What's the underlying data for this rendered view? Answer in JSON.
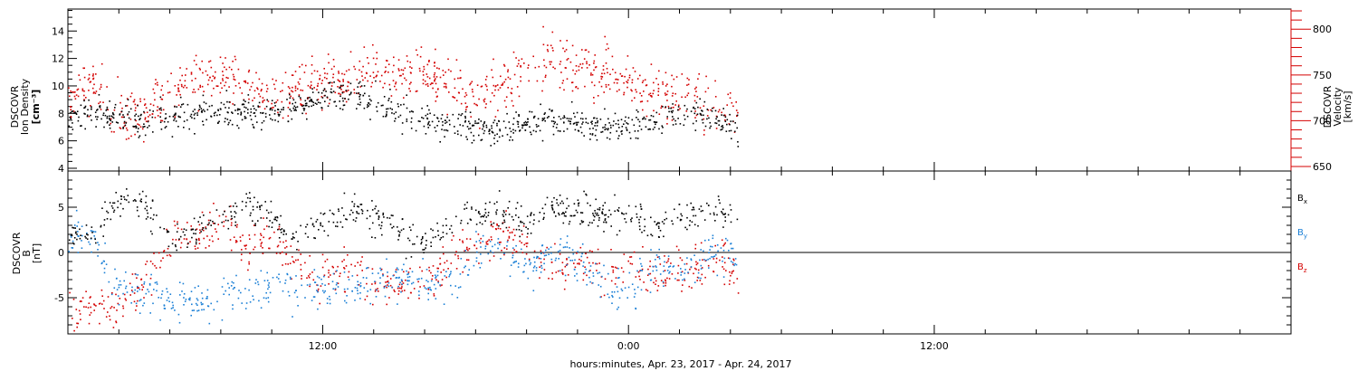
{
  "chart_data": [
    {
      "type": "scatter",
      "title": "",
      "x_axis": {
        "label": "hours:minutes, Apr. 23, 2017 - Apr. 24, 2017",
        "range_hours": [
          0,
          48
        ],
        "major_ticks": [
          {
            "hour": 10,
            "label": "12:00"
          },
          {
            "hour": 22,
            "label": "0:00"
          },
          {
            "hour": 34,
            "label": "12:00"
          }
        ],
        "minor_tick_every_hours": 2
      },
      "left_axis": {
        "label_lines": [
          "DSCOVR",
          "Ion Density"
        ],
        "unit": "[cm⁻³]",
        "range": [
          3.8,
          15.6
        ],
        "ticks": [
          4,
          6,
          8,
          10,
          12,
          14
        ],
        "color": "#000000"
      },
      "right_axis": {
        "label_lines": [
          "DSCOVR",
          "Velocity"
        ],
        "unit": "[km/s]",
        "range": [
          645,
          822
        ],
        "ticks": [
          650,
          700,
          750,
          800
        ],
        "color": "#d40000"
      },
      "series": [
        {
          "name": "Ion Density",
          "axis": "left",
          "color": "#000000",
          "anchors_x_hours": [
            0,
            1,
            2,
            3,
            4,
            5,
            6,
            7,
            8,
            9,
            10,
            11,
            12,
            13,
            14,
            15,
            16,
            17,
            18,
            19,
            20,
            21,
            22,
            23,
            24,
            25,
            26,
            26.3
          ],
          "anchors_y": [
            8.0,
            8.1,
            7.6,
            7.5,
            7.7,
            7.9,
            8.1,
            8.2,
            8.3,
            8.3,
            9.2,
            9.6,
            8.8,
            8.0,
            7.6,
            7.2,
            7.0,
            7.0,
            7.3,
            7.6,
            7.4,
            7.0,
            7.2,
            7.5,
            8.0,
            8.1,
            7.2,
            6.5
          ],
          "data_until_hour": 26.3
        },
        {
          "name": "Velocity",
          "axis": "right",
          "color": "#d40000",
          "anchors_x_hours": [
            0,
            1,
            2,
            3,
            4,
            5,
            6,
            7,
            8,
            9,
            10,
            11,
            12,
            13,
            14,
            15,
            16,
            17,
            18,
            19,
            20,
            21,
            22,
            23,
            24,
            25,
            26,
            26.3
          ],
          "anchors_y": [
            720,
            738,
            700,
            710,
            735,
            740,
            745,
            738,
            725,
            735,
            748,
            745,
            760,
            745,
            755,
            740,
            725,
            740,
            760,
            768,
            755,
            752,
            745,
            732,
            730,
            720,
            715,
            700
          ],
          "data_until_hour": 26.3
        }
      ],
      "legend": "none"
    },
    {
      "type": "scatter",
      "title": "",
      "x_axis": {
        "label": "hours:minutes, Apr. 23, 2017 - Apr. 24, 2017",
        "range_hours": [
          0,
          48
        ]
      },
      "left_axis": {
        "label_lines": [
          "DSCOVR",
          "B"
        ],
        "unit": "[nT]",
        "range": [
          -9,
          9
        ],
        "ticks": [
          -5,
          0,
          5
        ],
        "zero_line": true
      },
      "series": [
        {
          "name": "B",
          "sub": "x",
          "color": "#000000",
          "anchors_x_hours": [
            0,
            1,
            2,
            3,
            4,
            5,
            6,
            7,
            8,
            9,
            10,
            11,
            12,
            13,
            14,
            15,
            16,
            17,
            18,
            19,
            20,
            21,
            22,
            23,
            24,
            25,
            26,
            26.3
          ],
          "anchors_y": [
            1.5,
            2.5,
            5.5,
            5.0,
            2.0,
            2.5,
            4.5,
            5.0,
            4.0,
            2.0,
            3.5,
            5.0,
            4.0,
            2.5,
            1.0,
            3.5,
            4.5,
            5.0,
            3.0,
            5.0,
            4.5,
            4.5,
            4.0,
            3.0,
            4.0,
            4.5,
            4.5,
            3.0
          ],
          "data_until_hour": 26.3
        },
        {
          "name": "B",
          "sub": "y",
          "color": "#1a7fd6",
          "anchors_x_hours": [
            0,
            1,
            2,
            3,
            4,
            5,
            6,
            7,
            8,
            9,
            10,
            11,
            12,
            13,
            14,
            15,
            16,
            17,
            18,
            19,
            20,
            21,
            22,
            23,
            24,
            25,
            26,
            26.3
          ],
          "anchors_y": [
            2.0,
            1.5,
            -4.5,
            -4.0,
            -5.0,
            -5.5,
            -5.0,
            -4.0,
            -3.5,
            -4.0,
            -3.5,
            -4.0,
            -3.0,
            -3.0,
            -3.5,
            -3.0,
            0.0,
            1.0,
            -2.0,
            0.5,
            -1.0,
            -3.5,
            -5.0,
            -1.0,
            -2.5,
            -0.5,
            0.5,
            -3.0
          ],
          "data_until_hour": 26.3
        },
        {
          "name": "B",
          "sub": "z",
          "color": "#d40000",
          "anchors_x_hours": [
            0,
            1,
            2,
            3,
            4,
            5,
            6,
            7,
            8,
            9,
            10,
            11,
            12,
            13,
            14,
            15,
            16,
            17,
            18,
            19,
            20,
            21,
            22,
            23,
            24,
            25,
            26,
            26.3
          ],
          "anchors_y": [
            -6.5,
            -6.0,
            -6.5,
            -2.5,
            1.0,
            2.0,
            3.0,
            1.0,
            1.5,
            -1.0,
            -3.0,
            -2.0,
            -3.5,
            -4.0,
            -3.0,
            -0.5,
            1.0,
            2.5,
            0.5,
            -2.0,
            -1.0,
            -2.0,
            -1.5,
            -2.5,
            -2.0,
            -1.5,
            -1.0,
            -3.5
          ],
          "data_until_hour": 26.3
        }
      ],
      "legend": "right"
    }
  ]
}
